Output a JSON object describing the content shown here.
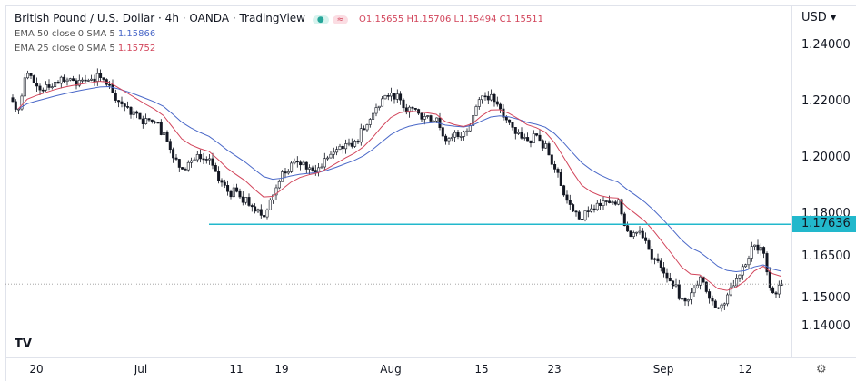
{
  "header": {
    "title": "British Pound / U.S. Dollar · 4h · OANDA · TradingView",
    "open": "O1.15655",
    "high": "H1.15706",
    "low": "L1.15494",
    "close": "C1.15511"
  },
  "indicators": [
    {
      "label": "EMA 50 close 0 SMA 5",
      "value": "1.15866",
      "color": "#4a68c8"
    },
    {
      "label": "EMA 25 close 0 SMA 5",
      "value": "1.15752",
      "color": "#d2455b"
    }
  ],
  "currency": "USD",
  "currency_menu": "USD ▾",
  "colors": {
    "up": "#26a69a",
    "down": "#ef5350",
    "candle": "#131722",
    "level": "#22b8cc",
    "ema50": "#4a68c8",
    "ema25": "#d2455b"
  },
  "chart_data": {
    "type": "candlestick",
    "y_ticks": [
      "1.24000",
      "1.22000",
      "1.20000",
      "1.18000",
      "1.16500",
      "1.15000",
      "1.14000"
    ],
    "y_tick_values": [
      1.24,
      1.22,
      1.2,
      1.18,
      1.165,
      1.15,
      1.14
    ],
    "ylim": [
      1.1295,
      1.2545
    ],
    "x_ticks": [
      {
        "label": "20",
        "index": 2
      },
      {
        "label": "Jul",
        "index": 13.5
      },
      {
        "label": "11",
        "index": 24
      },
      {
        "label": "19",
        "index": 29
      },
      {
        "label": "Aug",
        "index": 41
      },
      {
        "label": "15",
        "index": 51
      },
      {
        "label": "23",
        "index": 59
      },
      {
        "label": "Sep",
        "index": 71
      },
      {
        "label": "12",
        "index": 80
      }
    ],
    "closes": [
      1.2174,
      1.23,
      1.2255,
      1.226,
      1.227,
      1.2272,
      1.2275,
      1.2277,
      1.228,
      1.2285,
      1.226,
      1.22,
      1.218,
      1.2158,
      1.214,
      1.2126,
      1.209,
      1.2,
      1.196,
      1.199,
      1.1997,
      1.1997,
      1.192,
      1.188,
      1.188,
      1.186,
      1.181,
      1.179,
      1.1868,
      1.195,
      1.1981,
      1.1975,
      1.1965,
      1.1965,
      1.2,
      1.203,
      1.205,
      1.206,
      1.21,
      1.2158,
      1.221,
      1.223,
      1.2206,
      1.218,
      1.2158,
      1.215,
      1.2142,
      1.2061,
      1.209,
      1.2093,
      1.215,
      1.222,
      1.2225,
      1.2174,
      1.2125,
      1.209,
      1.2061,
      1.208,
      1.205,
      1.196,
      1.1868,
      1.181,
      1.178,
      1.1819,
      1.183,
      1.184,
      1.1852,
      1.1739,
      1.1735,
      1.1705,
      1.1642,
      1.159,
      1.1545,
      1.15,
      1.152,
      1.1577,
      1.15,
      1.1465,
      1.1513,
      1.157,
      1.162,
      1.169,
      1.166,
      1.152,
      1.1551
    ],
    "horizontal_level": {
      "value": 1.17636,
      "label": "1.17636",
      "start_index": 21
    },
    "last_price": 1.1551,
    "series": [
      {
        "name": "EMA 50 close 0 SMA 5",
        "period": 50
      },
      {
        "name": "EMA 25 close 0 SMA 5",
        "period": 25
      }
    ]
  },
  "footer": {
    "logo": "TV",
    "settings_icon": "gear-icon"
  }
}
